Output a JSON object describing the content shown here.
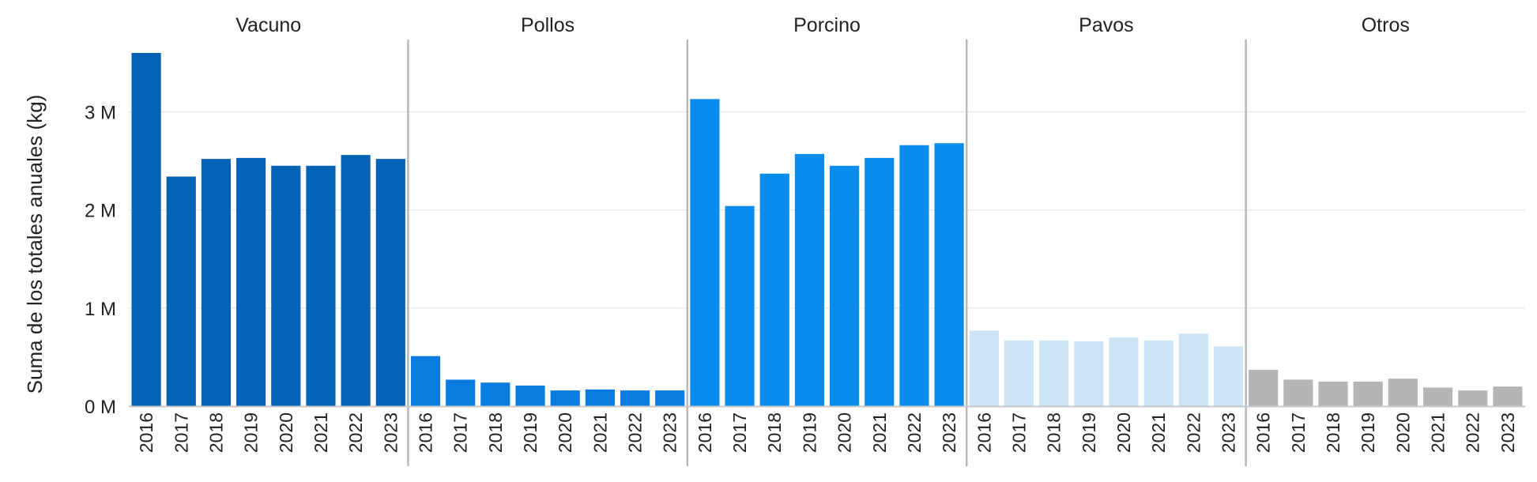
{
  "chart_data": {
    "type": "bar",
    "ylabel": "Suma de los totales anuales (kg)",
    "ylim": [
      0,
      3600000
    ],
    "y_ticks": [
      {
        "value": 0,
        "label": "0 M"
      },
      {
        "value": 1000000,
        "label": "1 M"
      },
      {
        "value": 2000000,
        "label": "2 M"
      },
      {
        "value": 3000000,
        "label": "3 M"
      }
    ],
    "grid": true,
    "categories": [
      "2016",
      "2017",
      "2018",
      "2019",
      "2020",
      "2021",
      "2022",
      "2023"
    ],
    "panels": [
      {
        "name": "Vacuno",
        "color": "#0563b5",
        "values": [
          3600000,
          2340000,
          2520000,
          2530000,
          2450000,
          2450000,
          2560000,
          2520000
        ]
      },
      {
        "name": "Pollos",
        "color": "#0a7bdf",
        "values": [
          510000,
          270000,
          240000,
          210000,
          160000,
          170000,
          160000,
          160000
        ]
      },
      {
        "name": "Porcino",
        "color": "#0a8cec",
        "values": [
          3130000,
          2040000,
          2370000,
          2570000,
          2450000,
          2530000,
          2660000,
          2680000
        ]
      },
      {
        "name": "Pavos",
        "color": "#cde4f7",
        "values": [
          770000,
          670000,
          670000,
          660000,
          700000,
          670000,
          740000,
          610000
        ]
      },
      {
        "name": "Otros",
        "color": "#b5b5b5",
        "values": [
          370000,
          270000,
          250000,
          250000,
          280000,
          190000,
          160000,
          200000
        ]
      }
    ]
  }
}
